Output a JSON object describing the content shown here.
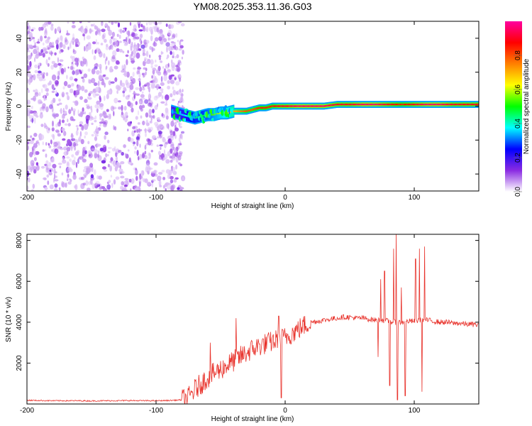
{
  "chart_data": [
    {
      "type": "heatmap",
      "title": "YM08.2025.353.11.36.G03",
      "xlabel": "Height of straight line (km)",
      "ylabel": "Frequency (Hz)",
      "xlim": [
        -200,
        150
      ],
      "ylim": [
        -50,
        50
      ],
      "x_ticks": [
        -200,
        -100,
        0,
        100
      ],
      "y_ticks": [
        -40,
        -20,
        0,
        20,
        40
      ],
      "colorbar": {
        "label": "Normalized spectral amplitude",
        "range": [
          0,
          1
        ],
        "ticks": [
          "0.0",
          "0.2",
          "0.4",
          "0.6",
          "0.8"
        ],
        "colors": [
          "#ffffff",
          "#8a2be2",
          "#0000ff",
          "#00ffff",
          "#00ff00",
          "#ffff00",
          "#ff8000",
          "#ff0000",
          "#ff00a0"
        ]
      },
      "noise_region_x": [
        -200,
        -85
      ],
      "signal_trace": {
        "x": [
          -88,
          -80,
          -75,
          -70,
          -65,
          -60,
          -55,
          -50,
          -45,
          -40,
          -35,
          -30,
          -25,
          -20,
          -15,
          -10,
          -5,
          0,
          10,
          20,
          30,
          40,
          50,
          60,
          70,
          80,
          90,
          100,
          110,
          120,
          130,
          140,
          150
        ],
        "freq": [
          -3,
          -5,
          -6,
          -7,
          -6,
          -5,
          -5,
          -4,
          -4,
          -3,
          -3,
          -3,
          -2,
          -1,
          -1,
          0,
          0,
          0,
          0,
          0,
          0,
          1,
          1,
          1,
          1,
          1,
          1,
          1,
          1,
          1,
          1,
          1,
          1
        ],
        "amplitude": [
          0.3,
          0.35,
          0.4,
          0.45,
          0.45,
          0.5,
          0.55,
          0.6,
          0.65,
          0.7,
          0.75,
          0.8,
          0.8,
          0.85,
          0.85,
          0.85,
          0.9,
          0.9,
          0.95,
          0.95,
          0.95,
          0.9,
          0.9,
          0.95,
          0.95,
          0.9,
          0.85,
          0.9,
          0.95,
          0.95,
          0.9,
          0.9,
          0.9
        ]
      }
    },
    {
      "type": "line",
      "xlabel": "Height of straight line (km)",
      "ylabel": "SNR (10 * v/v)",
      "xlim": [
        -200,
        150
      ],
      "ylim": [
        0,
        8300
      ],
      "x_ticks": [
        -200,
        -100,
        0,
        100
      ],
      "y_ticks": [
        2000,
        4000,
        6000,
        8000
      ],
      "color": "#e8312a",
      "series": [
        {
          "name": "SNR",
          "x": [
            -200,
            -190,
            -180,
            -170,
            -160,
            -150,
            -140,
            -130,
            -120,
            -110,
            -100,
            -90,
            -80,
            -75,
            -70,
            -65,
            -60,
            -55,
            -50,
            -45,
            -40,
            -35,
            -30,
            -25,
            -20,
            -15,
            -10,
            -5,
            0,
            5,
            10,
            15,
            20,
            25,
            30,
            35,
            40,
            45,
            50,
            55,
            60,
            65,
            70,
            75,
            80,
            85,
            90,
            95,
            100,
            105,
            110,
            115,
            120,
            125,
            130,
            135,
            140,
            145,
            150
          ],
          "values": [
            180,
            170,
            160,
            160,
            160,
            150,
            160,
            160,
            170,
            160,
            160,
            170,
            200,
            300,
            700,
            1000,
            1300,
            1500,
            1700,
            1900,
            2100,
            2300,
            2500,
            2700,
            2850,
            2950,
            3050,
            3150,
            3250,
            3450,
            3650,
            3850,
            4000,
            4050,
            4100,
            4150,
            4200,
            4250,
            4250,
            4200,
            4200,
            4150,
            4100,
            4100,
            4050,
            4000,
            4000,
            4050,
            4050,
            4100,
            4100,
            4050,
            4000,
            4000,
            3950,
            3950,
            3900,
            3900,
            3850
          ]
        }
      ],
      "spikes": [
        {
          "x": -58,
          "value": 3000
        },
        {
          "x": -38,
          "value": 4200
        },
        {
          "x": -5,
          "value": 4300
        },
        {
          "x": -3,
          "value": 300
        },
        {
          "x": 72,
          "value": 2300
        },
        {
          "x": 74,
          "value": 6100
        },
        {
          "x": 77,
          "value": 6500
        },
        {
          "x": 81,
          "value": 900
        },
        {
          "x": 84,
          "value": 7600
        },
        {
          "x": 86,
          "value": 8300
        },
        {
          "x": 87,
          "value": 200
        },
        {
          "x": 90,
          "value": 5700
        },
        {
          "x": 93,
          "value": 400
        },
        {
          "x": 101,
          "value": 7100
        },
        {
          "x": 104,
          "value": 7600
        },
        {
          "x": 106,
          "value": 600
        },
        {
          "x": 108,
          "value": 7700
        }
      ]
    }
  ]
}
